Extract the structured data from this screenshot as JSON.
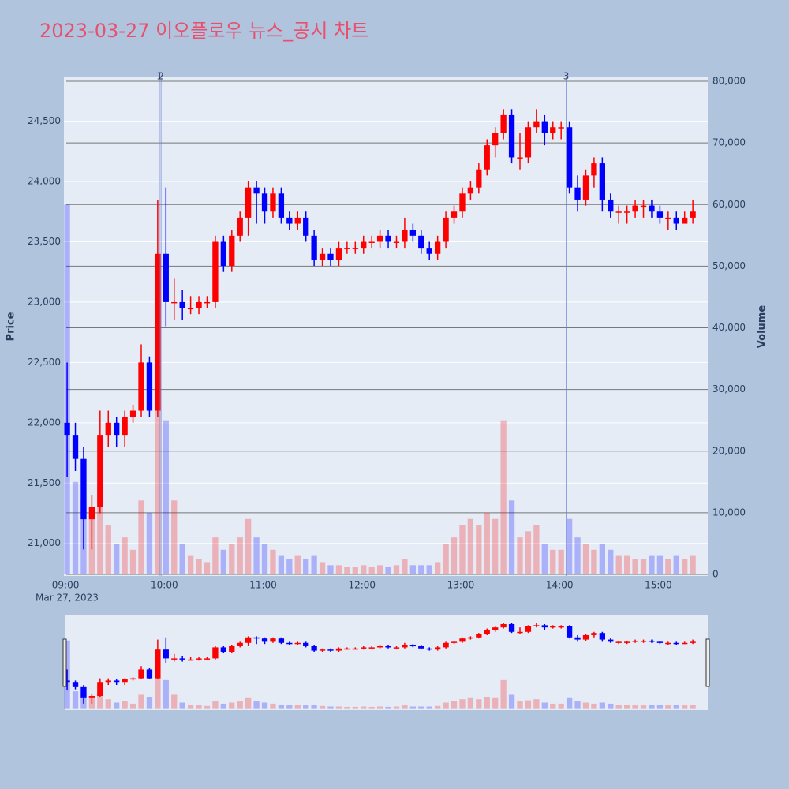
{
  "chart_data": {
    "type": "candlestick",
    "title": "2023-03-27 이오플로우 뉴스_공시 차트",
    "x": [
      "09:00",
      "09:05",
      "09:10",
      "09:15",
      "09:20",
      "09:25",
      "09:30",
      "09:35",
      "09:40",
      "09:45",
      "09:50",
      "09:55",
      "10:00",
      "10:05",
      "10:10",
      "10:15",
      "10:20",
      "10:25",
      "10:30",
      "10:35",
      "10:40",
      "10:45",
      "10:50",
      "10:55",
      "11:00",
      "11:05",
      "11:10",
      "11:15",
      "11:20",
      "11:25",
      "11:30",
      "11:35",
      "11:40",
      "11:45",
      "11:50",
      "11:55",
      "12:00",
      "12:05",
      "12:10",
      "12:15",
      "12:20",
      "12:25",
      "12:30",
      "12:35",
      "12:40",
      "12:45",
      "12:50",
      "12:55",
      "13:00",
      "13:05",
      "13:10",
      "13:15",
      "13:20",
      "13:25",
      "13:30",
      "13:35",
      "13:40",
      "13:45",
      "13:50",
      "13:55",
      "14:00",
      "14:05",
      "14:10",
      "14:15",
      "14:20",
      "14:25",
      "14:30",
      "14:35",
      "14:40",
      "14:45",
      "14:50",
      "14:55",
      "15:00",
      "15:05",
      "15:10",
      "15:15",
      "15:20"
    ],
    "open": [
      22000,
      21900,
      21700,
      21200,
      21300,
      21900,
      22000,
      21900,
      22050,
      22100,
      22500,
      22100,
      23400,
      23000,
      23000,
      22950,
      22950,
      23000,
      23000,
      23500,
      23300,
      23550,
      23700,
      23950,
      23900,
      23750,
      23900,
      23700,
      23650,
      23700,
      23550,
      23350,
      23400,
      23350,
      23450,
      23450,
      23450,
      23500,
      23500,
      23550,
      23500,
      23500,
      23600,
      23550,
      23450,
      23400,
      23500,
      23700,
      23750,
      23900,
      23950,
      24100,
      24300,
      24400,
      24550,
      24200,
      24200,
      24450,
      24500,
      24400,
      24450,
      24450,
      23950,
      23850,
      24050,
      24150,
      23850,
      23750,
      23750,
      23750,
      23800,
      23800,
      23750,
      23700,
      23700,
      23650,
      23700
    ],
    "high": [
      22500,
      22000,
      21800,
      21400,
      22100,
      22100,
      22050,
      22100,
      22150,
      22650,
      22550,
      23850,
      23950,
      23200,
      23100,
      23050,
      23050,
      23050,
      23550,
      23550,
      23600,
      23750,
      24000,
      24000,
      23950,
      23950,
      23950,
      23750,
      23750,
      23750,
      23600,
      23450,
      23450,
      23500,
      23500,
      23500,
      23550,
      23550,
      23600,
      23600,
      23550,
      23700,
      23650,
      23600,
      23500,
      23550,
      23750,
      23800,
      23950,
      24000,
      24150,
      24350,
      24450,
      24600,
      24600,
      24400,
      24500,
      24600,
      24550,
      24500,
      24500,
      24500,
      24050,
      24100,
      24200,
      24200,
      23900,
      23800,
      23800,
      23850,
      23850,
      23850,
      23800,
      23750,
      23750,
      23750,
      23850
    ],
    "low": [
      21550,
      21600,
      20950,
      20950,
      21250,
      21800,
      21800,
      21800,
      22000,
      22050,
      22050,
      22050,
      22800,
      22850,
      22850,
      22900,
      22900,
      22950,
      22950,
      23250,
      23250,
      23500,
      23550,
      23650,
      23650,
      23700,
      23650,
      23600,
      23600,
      23500,
      23300,
      23300,
      23300,
      23300,
      23400,
      23400,
      23400,
      23450,
      23450,
      23450,
      23450,
      23450,
      23500,
      23400,
      23350,
      23350,
      23450,
      23650,
      23700,
      23850,
      23900,
      24050,
      24200,
      24350,
      24150,
      24100,
      24150,
      24400,
      24300,
      24350,
      24350,
      23900,
      23750,
      23800,
      23950,
      23750,
      23700,
      23650,
      23650,
      23700,
      23700,
      23700,
      23650,
      23600,
      23600,
      23650,
      23650
    ],
    "close": [
      21900,
      21700,
      21200,
      21300,
      21900,
      22000,
      21900,
      22050,
      22100,
      22500,
      22100,
      23400,
      23000,
      23000,
      22950,
      22950,
      23000,
      23000,
      23500,
      23300,
      23550,
      23700,
      23950,
      23900,
      23750,
      23900,
      23700,
      23650,
      23700,
      23550,
      23350,
      23400,
      23350,
      23450,
      23450,
      23450,
      23500,
      23500,
      23550,
      23500,
      23500,
      23600,
      23550,
      23450,
      23400,
      23500,
      23700,
      23750,
      23900,
      23950,
      24100,
      24300,
      24400,
      24550,
      24200,
      24200,
      24450,
      24500,
      24400,
      24450,
      24450,
      23950,
      23850,
      24050,
      24150,
      23850,
      23750,
      23750,
      23750,
      23800,
      23800,
      23750,
      23700,
      23700,
      23650,
      23700,
      23750
    ],
    "volume": [
      60000,
      15000,
      12000,
      9000,
      14000,
      8000,
      5000,
      6000,
      4000,
      12000,
      10000,
      30000,
      25000,
      12000,
      5000,
      3000,
      2500,
      2000,
      6000,
      4000,
      5000,
      6000,
      9000,
      6000,
      5000,
      4000,
      3000,
      2500,
      3000,
      2500,
      3000,
      2000,
      1500,
      1500,
      1200,
      1200,
      1500,
      1200,
      1500,
      1200,
      1500,
      2500,
      1500,
      1500,
      1500,
      2000,
      5000,
      6000,
      8000,
      9000,
      8000,
      10000,
      9000,
      25000,
      12000,
      6000,
      7000,
      8000,
      5000,
      4000,
      4000,
      9000,
      6000,
      5000,
      4000,
      5000,
      4000,
      3000,
      3000,
      2500,
      2500,
      3000,
      3000,
      2500,
      3000,
      2500,
      3000
    ],
    "up_color": "#ff0000",
    "down_color": "#0000ff",
    "xlim": [
      "08:59",
      "15:30"
    ],
    "xticks": [
      "09:00",
      "10:00",
      "11:00",
      "12:00",
      "13:00",
      "14:00",
      "15:00"
    ],
    "x_date_label": "Mar 27, 2023",
    "ylim": [
      20730,
      24870
    ],
    "yticks": [
      {
        "value": 21000,
        "label": "21,000"
      },
      {
        "value": 21500,
        "label": "21,500"
      },
      {
        "value": 22000,
        "label": "22,000"
      },
      {
        "value": 22500,
        "label": "22,500"
      },
      {
        "value": 23000,
        "label": "23,000"
      },
      {
        "value": 23500,
        "label": "23,500"
      },
      {
        "value": 24000,
        "label": "24,000"
      },
      {
        "value": 24500,
        "label": "24,500"
      }
    ],
    "y2lim": [
      -250,
      80770
    ],
    "y2ticks": [
      0,
      {
        "value": 10000,
        "label": "10,000"
      },
      {
        "value": 20000,
        "label": "20,000"
      },
      {
        "value": 30000,
        "label": "30,000"
      },
      {
        "value": 40000,
        "label": "40,000"
      },
      {
        "value": 50000,
        "label": "50,000"
      },
      {
        "value": 60000,
        "label": "60,000"
      },
      {
        "value": 70000,
        "label": "70,000"
      },
      {
        "value": 80000,
        "label": "80,000"
      }
    ],
    "ylabel": "Price",
    "y2label": "Volume",
    "markers": [
      {
        "x": "09:57",
        "label": "1"
      },
      {
        "x": "09:58",
        "label": "2"
      },
      {
        "x": "14:04",
        "label": "3"
      }
    ],
    "rangeslider": true
  }
}
